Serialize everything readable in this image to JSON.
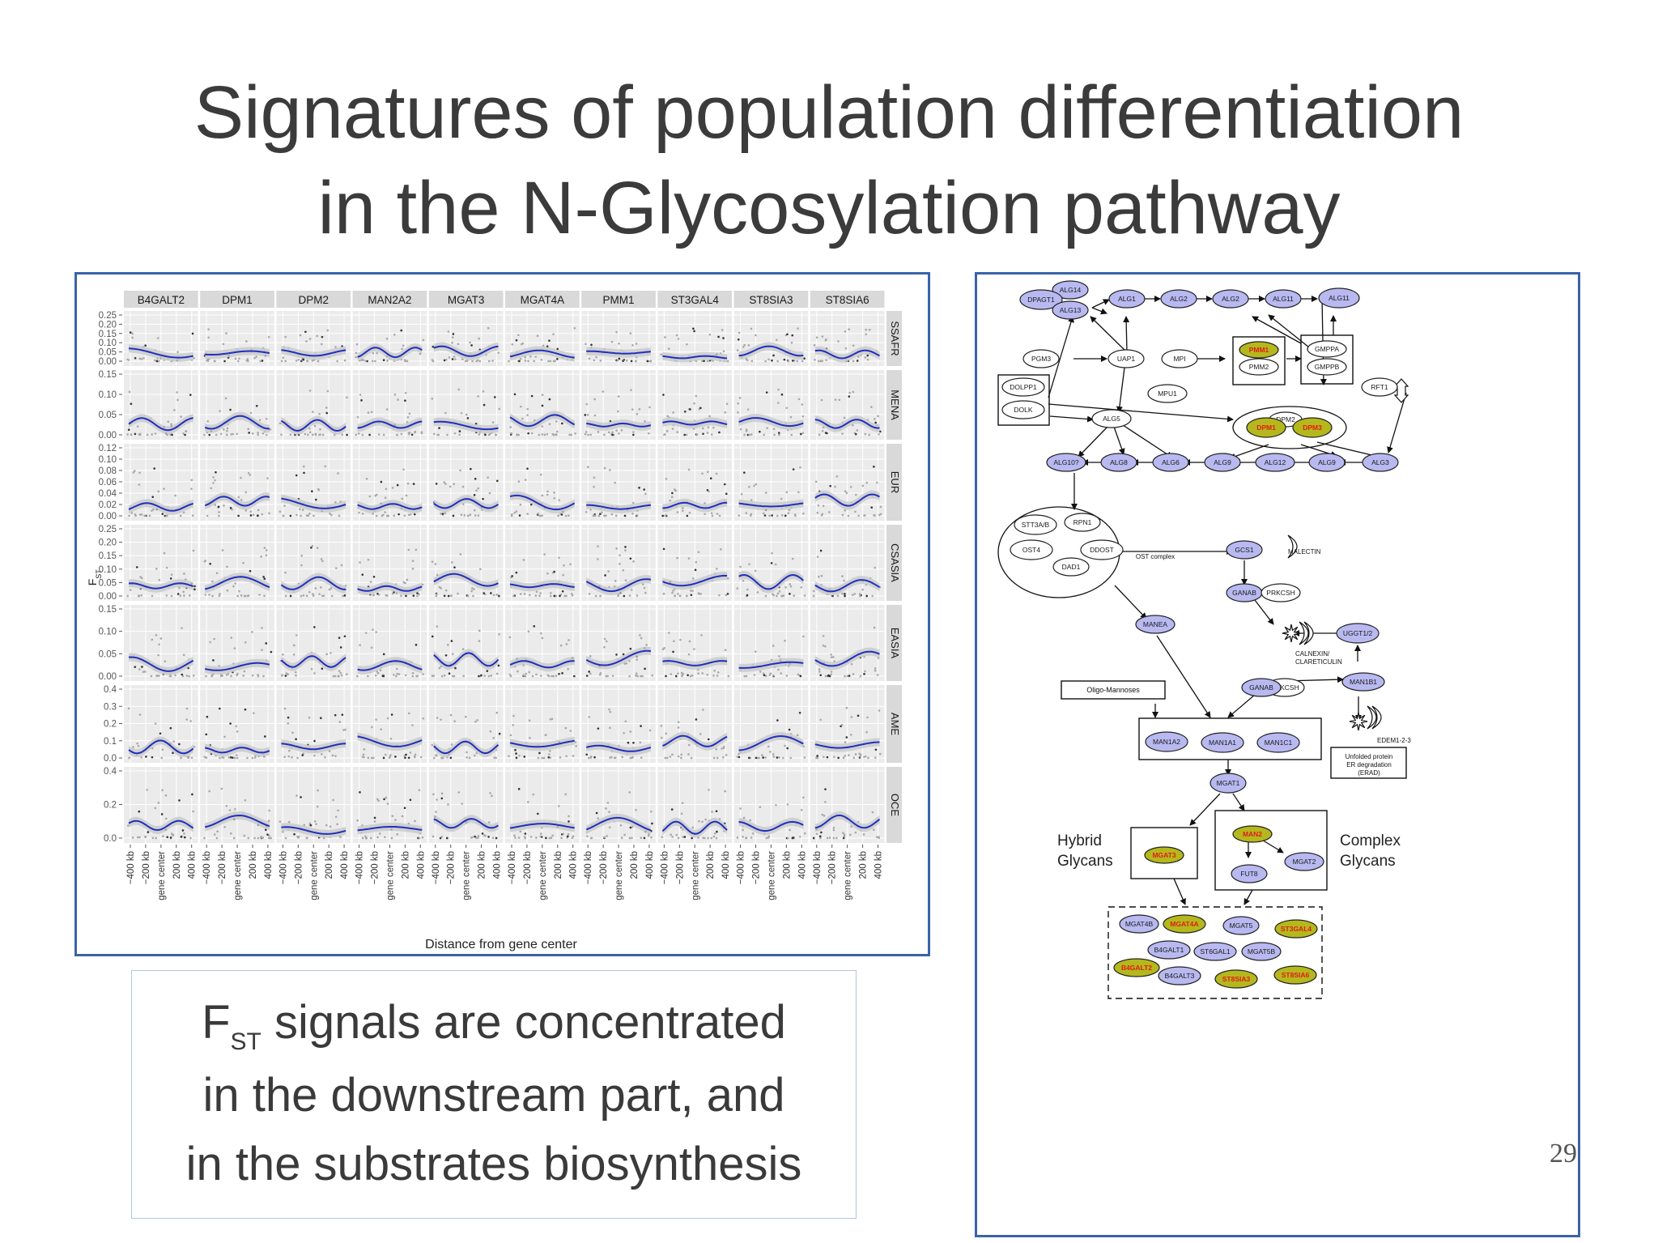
{
  "slide": {
    "title_line1": "Signatures of population differentiation",
    "title_line2": "in the N-Glycosylation pathway",
    "slide_number": "29"
  },
  "caption": {
    "fst_main": "F",
    "fst_sub": "ST",
    "line1_rest": " signals are concentrated",
    "line2": "in the downstream part, and",
    "line3": "in the substrates biosynthesis"
  },
  "facet_plot": {
    "genes": [
      "B4GALT2",
      "DPM1",
      "DPM2",
      "MAN2A2",
      "MGAT3",
      "MGAT4A",
      "PMM1",
      "ST3GAL4",
      "ST8SIA3",
      "ST8SIA6"
    ],
    "populations": [
      "SSAFR",
      "MENA",
      "EUR",
      "CSASIA",
      "EASIA",
      "AME",
      "OCE"
    ],
    "y_ticks": [
      [
        "0.25",
        "0.20",
        "0.15",
        "0.10",
        "0.05",
        "0.00"
      ],
      [
        "0.15",
        "0.10",
        "0.05",
        "0.00"
      ],
      [
        "0.12",
        "0.10",
        "0.08",
        "0.06",
        "0.04",
        "0.02",
        "0.00"
      ],
      [
        "0.25",
        "0.20",
        "0.15",
        "0.10",
        "0.05",
        "0.00"
      ],
      [
        "0.15",
        "0.10",
        "0.05",
        "0.00"
      ],
      [
        "0.4",
        "0.3",
        "0.2",
        "0.1",
        "0.0"
      ],
      [
        "0.4",
        "0.2",
        "0.0"
      ]
    ],
    "x_ticks": [
      "−400 kb",
      "−200 kb",
      "gene center",
      "200 kb",
      "400 kb"
    ],
    "y_axis_label": "F",
    "y_axis_sub": "ST",
    "x_axis_label": "Distance from gene center",
    "line_color": "#1f2fbf",
    "strip_color": "#d9d9d9",
    "panel_bg": "#ebebeb"
  },
  "pathway": {
    "colors": {
      "node_blue": "#b8b9f0",
      "node_olive": "#b5b81c",
      "text_red": "#e01b1b"
    },
    "nodes": {
      "DPAGT1": "DPAGT1",
      "ALG14": "ALG14",
      "ALG13": "ALG13",
      "ALG1": "ALG1",
      "ALG2": "ALG2",
      "ALG2b": "ALG2",
      "ALG11a": "ALG11",
      "ALG11b": "ALG11",
      "PGM3": "PGM3",
      "UAP1": "UAP1",
      "MPI": "MPI",
      "PMM1": "PMM1",
      "PMM2": "PMM2",
      "GMPPA": "GMPPA",
      "GMPPB": "GMPPB",
      "DOLPP1": "DOLPP1",
      "DOLK": "DOLK",
      "MPU1": "MPU1",
      "RFT1": "RFT1",
      "ALG5": "ALG5",
      "DPM2": "DPM2",
      "DPM1": "DPM1",
      "DPM3": "DPM3",
      "ALG10": "ALG10?",
      "ALG8": "ALG8",
      "ALG6": "ALG6",
      "ALG9a": "ALG9",
      "ALG12": "ALG12",
      "ALG9b": "ALG9",
      "ALG3": "ALG3",
      "STT3AB": "STT3A/B",
      "RPN1": "RPN1",
      "OST4": "OST4",
      "DDOST": "DDOST",
      "DAD1": "DAD1",
      "OST": "OST complex",
      "GCS1": "GCS1",
      "MALECTIN": "MALECTIN",
      "GANAB1": "GANAB",
      "PRKCSH1": "PRKCSH",
      "MANEA": "MANEA",
      "UGGT": "UGGT1/2",
      "CALNEXIN": "CALNEXIN/",
      "CALRETICULIN": "CLARETICULIN",
      "GANAB2": "GANAB",
      "PRKCSH2": "PRKCSH",
      "MAN1B1": "MAN1B1",
      "OLIGO": "Oligo-Mannoses",
      "EDEM": "EDEM1-2-3",
      "ERAD1": "Unfolded protein",
      "ERAD2": "ER degradation",
      "ERAD3": "(ERAD)",
      "MAN1A2": "MAN1A2",
      "MAN1A1": "MAN1A1",
      "MAN1C1": "MAN1C1",
      "MGAT1": "MGAT1",
      "MAN2": "MAN2",
      "MGAT3": "MGAT3",
      "MGAT2": "MGAT2",
      "FUT8": "FUT8",
      "MGAT4B": "MGAT4B",
      "MGAT4A": "MGAT4A",
      "MGAT5": "MGAT5",
      "ST3GAL4": "ST3GAL4",
      "B4GALT1": "B4GALT1",
      "ST6GAL1": "ST6GAL1",
      "MGAT5B": "MGAT5B",
      "B4GALT2": "B4GALT2",
      "B4GALT3": "B4GALT3",
      "ST8SIA3": "ST8SIA3",
      "ST8SIA6": "ST8SIA6"
    },
    "hybrid_label_1": "Hybrid",
    "hybrid_label_2": "Glycans",
    "complex_label_1": "Complex",
    "complex_label_2": "Glycans"
  }
}
